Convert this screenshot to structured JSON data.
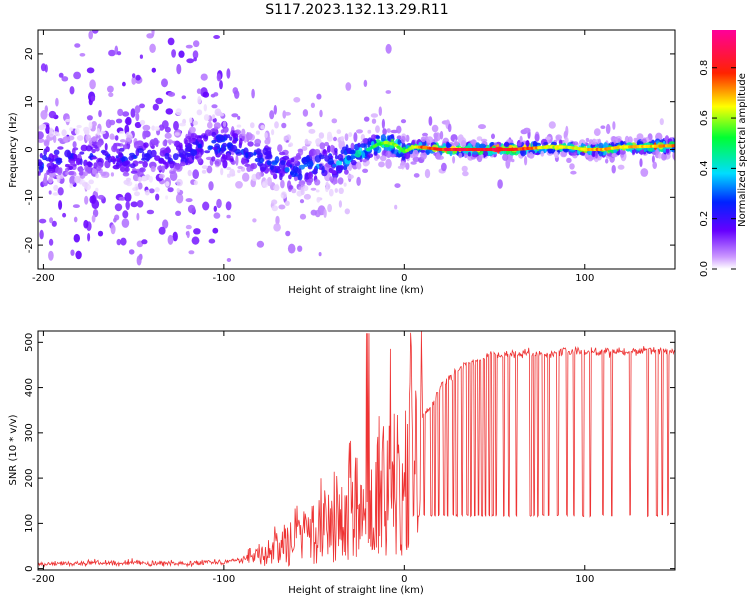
{
  "figure_title": "S117.2023.132.13.29.R11",
  "chart_data": [
    {
      "type": "heatmap",
      "xlabel": "Height of straight line (km)",
      "ylabel": "Frequency (Hz)",
      "xlim": [
        -203,
        150
      ],
      "ylim": [
        -25,
        25
      ],
      "xticks": [
        -200,
        -100,
        0,
        100
      ],
      "yticks": [
        -20,
        -10,
        0,
        10,
        20
      ],
      "grid": false,
      "colorbar": {
        "label": "Normalized spectral amplitude",
        "range": [
          0.0,
          0.95
        ],
        "ticks": [
          0.0,
          0.2,
          0.4,
          0.6,
          0.8
        ],
        "colormap": "rainbow (white-violet-blue-cyan-green-yellow-red-pink)"
      },
      "ridge": {
        "description": "center frequency of main spectral feature vs height",
        "x": [
          -203,
          -190,
          -180,
          -170,
          -160,
          -150,
          -140,
          -130,
          -120,
          -110,
          -100,
          -90,
          -80,
          -70,
          -60,
          -55,
          -50,
          -45,
          -40,
          -35,
          -30,
          -25,
          -20,
          -15,
          -10,
          -5,
          0,
          5,
          10,
          20,
          40,
          60,
          80,
          90,
          100,
          110,
          120,
          150
        ],
        "y": [
          -3,
          -1.5,
          -2,
          -1,
          -1.5,
          -2,
          -1,
          -1.5,
          -0.5,
          1,
          1,
          0,
          -1.5,
          -3,
          -5,
          -3,
          -4,
          -2.5,
          -3,
          -2.5,
          -1.5,
          -0.5,
          0,
          1,
          1.5,
          1,
          -0.5,
          0.5,
          0.5,
          0,
          0,
          0,
          0.5,
          0.5,
          0,
          0,
          0.5,
          0.8
        ],
        "amplitude": [
          0.35,
          0.25,
          0.25,
          0.25,
          0.25,
          0.3,
          0.25,
          0.25,
          0.3,
          0.3,
          0.35,
          0.3,
          0.3,
          0.35,
          0.35,
          0.35,
          0.35,
          0.35,
          0.35,
          0.4,
          0.45,
          0.5,
          0.55,
          0.6,
          0.65,
          0.7,
          0.6,
          0.75,
          0.85,
          0.9,
          0.95,
          0.95,
          0.7,
          0.7,
          0.75,
          0.8,
          0.75,
          0.8
        ]
      }
    },
    {
      "type": "line",
      "xlabel": "Height of straight line (km)",
      "ylabel": "SNR (10 * v/v)",
      "xlim": [
        -203,
        150
      ],
      "ylim": [
        -3,
        525
      ],
      "xticks": [
        -200,
        -100,
        0,
        100
      ],
      "yticks": [
        0,
        100,
        200,
        300,
        400,
        500
      ],
      "grid": false,
      "series": [
        {
          "color": "#ee3333",
          "x": [
            -203,
            -190,
            -180,
            -170,
            -160,
            -150,
            -140,
            -130,
            -120,
            -110,
            -100,
            -90,
            -80,
            -75,
            -70,
            -65,
            -60,
            -55,
            -50,
            -45,
            -40,
            -35,
            -30,
            -25,
            -20,
            -15,
            -10,
            -5,
            0,
            5,
            10,
            15,
            20,
            25,
            30,
            35,
            40,
            45,
            50,
            55,
            60,
            70,
            80,
            90,
            100,
            110,
            120,
            130,
            140,
            150
          ],
          "y": [
            10,
            12,
            12,
            14,
            10,
            15,
            10,
            12,
            12,
            15,
            15,
            20,
            35,
            45,
            60,
            80,
            90,
            95,
            100,
            120,
            120,
            130,
            150,
            170,
            190,
            220,
            250,
            270,
            290,
            310,
            330,
            360,
            400,
            420,
            440,
            455,
            460,
            470,
            475,
            470,
            475,
            475,
            475,
            480,
            478,
            480,
            480,
            482,
            483,
            482
          ]
        }
      ],
      "dropouts": {
        "description": "sharp drops to a floor of ~115 seen in the SNR trace",
        "x": [
          5,
          8,
          11,
          15,
          17,
          19,
          22,
          24,
          27,
          29,
          32,
          35,
          37,
          39,
          41,
          43,
          45,
          47,
          49,
          51,
          55,
          58,
          62,
          70,
          72,
          74,
          77,
          80,
          85,
          90,
          94,
          99,
          103,
          110,
          115,
          125,
          135,
          140,
          143,
          146
        ],
        "floor": 115
      }
    }
  ]
}
